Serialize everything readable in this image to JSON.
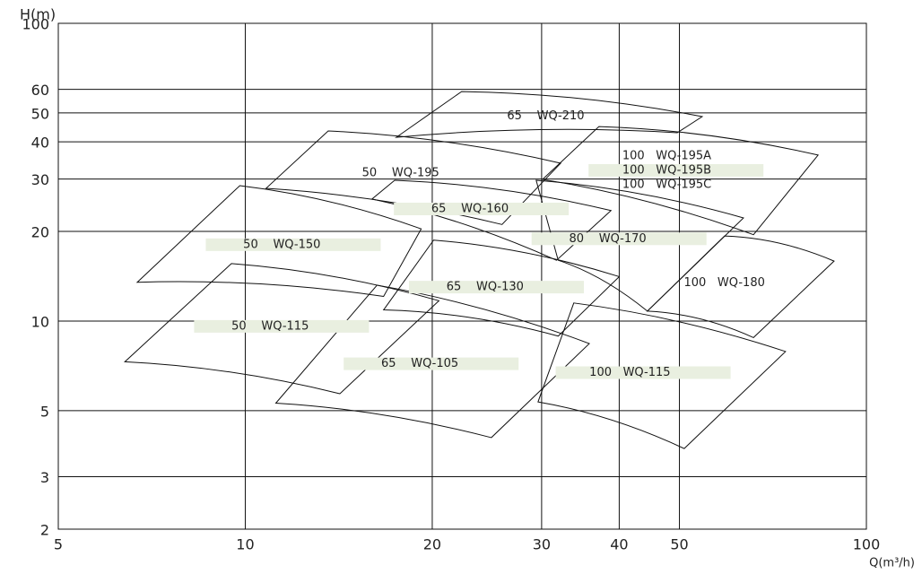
{
  "chart_data": {
    "type": "region",
    "x_label": "Q(m³/h)",
    "y_label": "H(m)",
    "log_x": true,
    "log_y": true,
    "grid": true,
    "xlim": [
      5,
      100
    ],
    "ylim": [
      2,
      100
    ],
    "xticks": [
      5,
      10,
      20,
      30,
      40,
      50,
      100
    ],
    "yticks": [
      2,
      3,
      5,
      10,
      20,
      30,
      40,
      50,
      60,
      100
    ],
    "regions": [
      {
        "labels": [
          {
            "size": "65",
            "model": "WQ-210"
          }
        ],
        "highlight": false,
        "x": [
          22.3,
          54.4,
          49.6,
          17.5
        ],
        "y": [
          59.0,
          48.6,
          42.9,
          41.4
        ]
      },
      {
        "labels": [
          {
            "size": "50",
            "model": "WQ-195"
          }
        ],
        "highlight": false,
        "x": [
          13.6,
          32.2,
          25.9,
          10.8
        ],
        "y": [
          43.5,
          33.9,
          21.1,
          27.9
        ]
      },
      {
        "labels": [
          {
            "size": "100",
            "model": "WQ-195A"
          },
          {
            "size": "100",
            "model": "WQ-195B"
          },
          {
            "size": "100",
            "model": "WQ-195C"
          }
        ],
        "highlight": true,
        "x": [
          37.1,
          83.6,
          65.8,
          30.1
        ],
        "y": [
          45.0,
          36.1,
          19.5,
          29.9
        ]
      },
      {
        "labels": [
          {
            "size": "65",
            "model": "WQ-160"
          }
        ],
        "highlight": true,
        "x": [
          17.4,
          38.8,
          31.7,
          16.0
        ],
        "y": [
          29.7,
          23.5,
          16.0,
          25.7
        ]
      },
      {
        "labels": [
          {
            "size": "80",
            "model": "WQ-170"
          }
        ],
        "highlight": true,
        "x": [
          29.4,
          63.4,
          44.4,
          31.9
        ],
        "y": [
          29.7,
          22.2,
          10.8,
          16.0
        ]
      },
      {
        "labels": [
          {
            "size": "50",
            "model": "WQ-150"
          }
        ],
        "highlight": true,
        "x": [
          9.8,
          19.2,
          16.7,
          6.7
        ],
        "y": [
          28.5,
          20.4,
          12.1,
          13.5
        ]
      },
      {
        "labels": [
          {
            "size": "65",
            "model": "WQ-130"
          }
        ],
        "highlight": true,
        "x": [
          20.1,
          40.0,
          31.9,
          16.7
        ],
        "y": [
          18.7,
          14.1,
          8.9,
          10.9
        ]
      },
      {
        "labels": [
          {
            "size": "100",
            "model": "WQ-180"
          }
        ],
        "highlight": false,
        "x": [
          59.1,
          88.7,
          65.8,
          44.4
        ],
        "y": [
          19.3,
          15.9,
          8.8,
          10.8
        ]
      },
      {
        "labels": [
          {
            "size": "50",
            "model": "WQ-115"
          }
        ],
        "highlight": true,
        "x": [
          9.5,
          20.5,
          14.2,
          6.4
        ],
        "y": [
          15.6,
          11.7,
          5.7,
          7.3
        ]
      },
      {
        "labels": [
          {
            "size": "65",
            "model": "WQ-105"
          }
        ],
        "highlight": true,
        "x": [
          16.3,
          35.8,
          24.9,
          11.2
        ],
        "y": [
          13.2,
          8.4,
          4.06,
          5.3
        ]
      },
      {
        "labels": [
          {
            "size": "100",
            "model": "WQ-115"
          }
        ],
        "highlight": true,
        "x": [
          33.8,
          74.1,
          50.9,
          29.6
        ],
        "y": [
          11.5,
          7.9,
          3.73,
          5.35
        ]
      }
    ]
  }
}
